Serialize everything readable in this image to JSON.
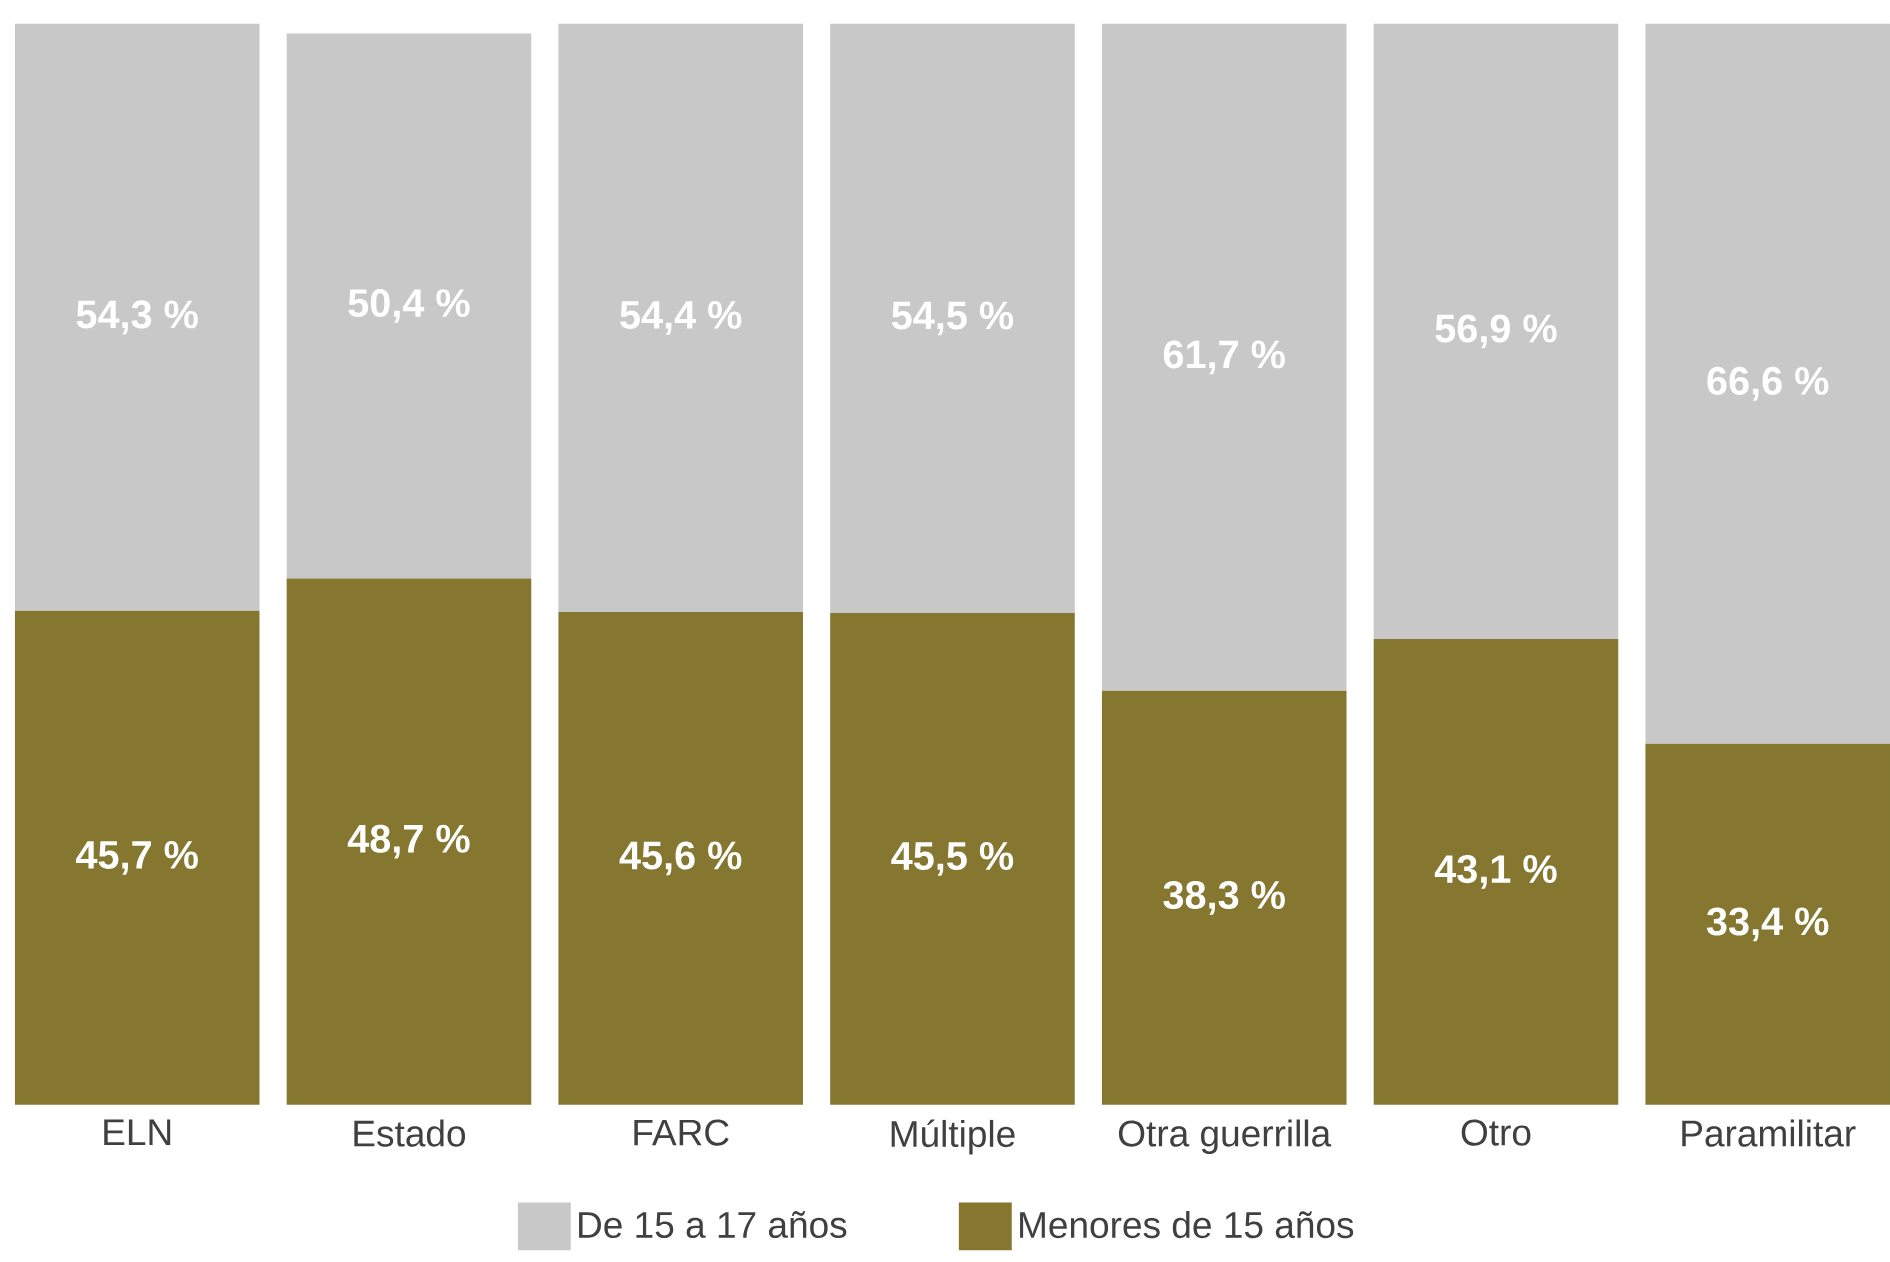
{
  "chart_data": {
    "type": "bar",
    "stacked": true,
    "categories": [
      "ELN",
      "Estado",
      "FARC",
      "Múltiple",
      "Otra guerrilla",
      "Otro",
      "Paramilitar"
    ],
    "series": [
      {
        "name": "Menores de 15 años",
        "color": "#857730",
        "values": [
          45.7,
          48.7,
          45.6,
          45.5,
          38.3,
          43.1,
          33.4
        ],
        "value_labels": [
          "45,7 %",
          "48,7 %",
          "45,6 %",
          "45,5 %",
          "38,3 %",
          "43,1 %",
          "33,4 %"
        ]
      },
      {
        "name": "De 15 a 17 años",
        "color": "#c8c8c8",
        "values": [
          54.3,
          50.4,
          54.4,
          54.5,
          61.7,
          56.9,
          66.6
        ],
        "value_labels": [
          "54,3 %",
          "50,4 %",
          "54,4 %",
          "54,5 %",
          "61,7 %",
          "56,9 %",
          "66,6 %"
        ]
      }
    ],
    "tick_labels": "x",
    "legend": "bottom",
    "grid": false
  }
}
